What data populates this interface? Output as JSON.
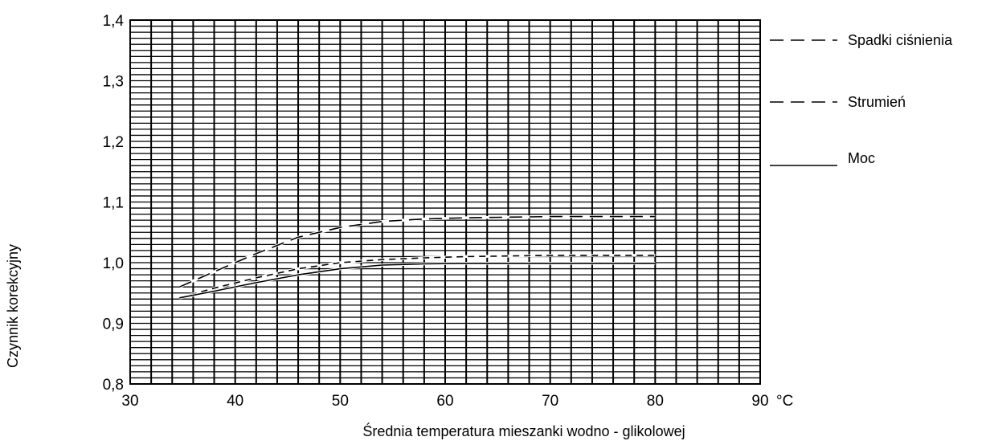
{
  "chart_data": {
    "type": "line",
    "xlabel": "Średnia temperatura mieszanki wodno - glikolowej",
    "ylabel": "Czynnik korekcyjny",
    "x_unit": "°C",
    "xlim": [
      30,
      90
    ],
    "ylim": [
      0.8,
      1.4
    ],
    "x_ticks": [
      "30",
      "40",
      "50",
      "60",
      "70",
      "80",
      "90"
    ],
    "y_ticks": [
      "0,8",
      "0,9",
      "1,0",
      "1,1",
      "1,2",
      "1,3",
      "1,4"
    ],
    "grid": true,
    "legend_position": "right",
    "series": [
      {
        "name": "Spadki ciśnienia",
        "style": "long-dash",
        "x": [
          34.7,
          38,
          42,
          46,
          50,
          54,
          58,
          62,
          66,
          70,
          75,
          80
        ],
        "y": [
          0.96,
          0.985,
          1.015,
          1.042,
          1.058,
          1.068,
          1.072,
          1.074,
          1.075,
          1.076,
          1.076,
          1.076
        ]
      },
      {
        "name": "Strumień",
        "style": "short-dash",
        "x": [
          34.7,
          38,
          42,
          46,
          50,
          54,
          58,
          62,
          66,
          70,
          75,
          80
        ],
        "y": [
          0.942,
          0.958,
          0.975,
          0.99,
          1.0,
          1.005,
          1.008,
          1.01,
          1.011,
          1.012,
          1.012,
          1.012
        ]
      },
      {
        "name": "Moc",
        "style": "solid",
        "x": [
          34.7,
          38,
          42,
          46,
          50,
          54,
          58,
          62,
          66,
          70,
          75,
          80
        ],
        "y": [
          0.942,
          0.953,
          0.967,
          0.98,
          0.99,
          0.996,
          0.998,
          0.999,
          0.999,
          0.999,
          0.999,
          0.999
        ]
      }
    ]
  }
}
